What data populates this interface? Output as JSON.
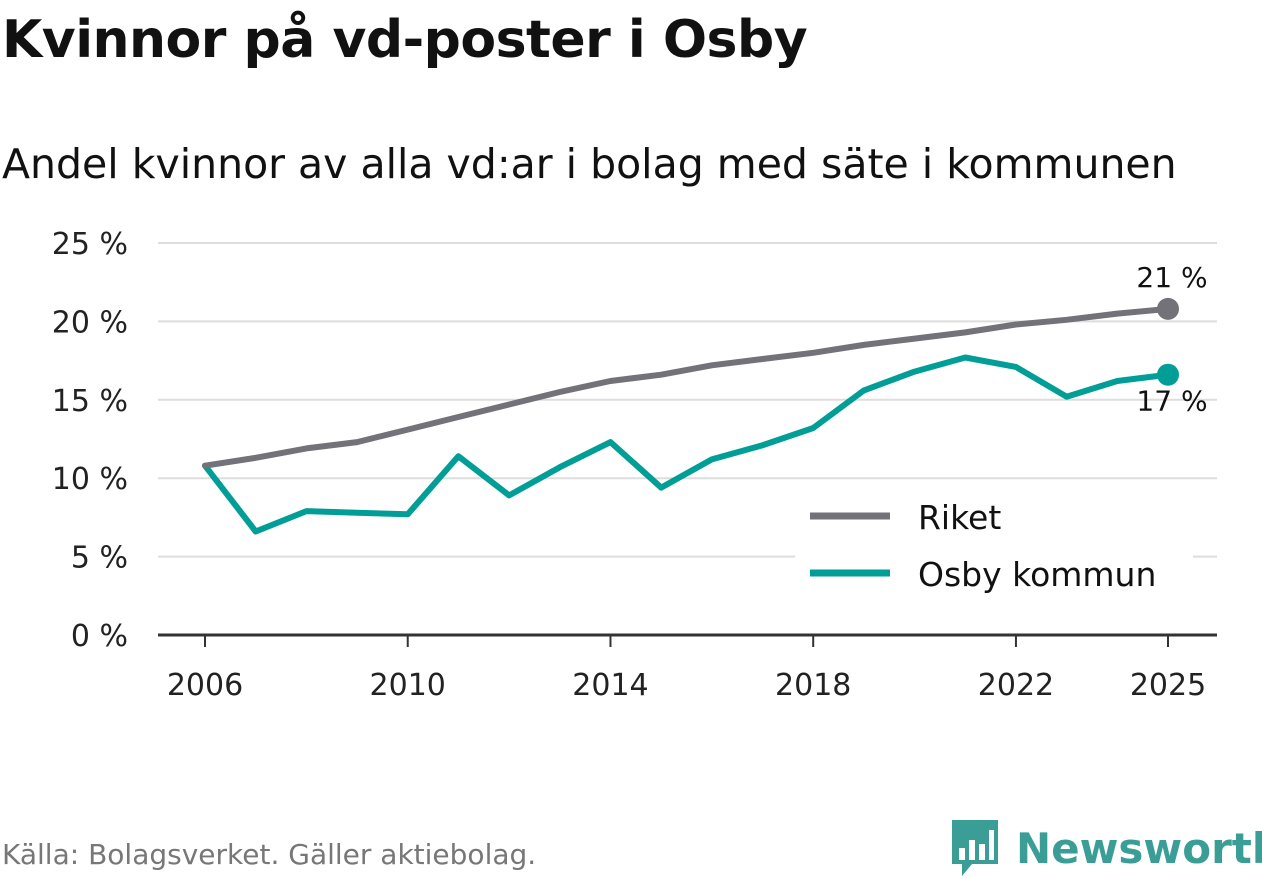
{
  "title": "Kvinnor på vd-poster i Osby",
  "subtitle": "Andel kvinnor av alla vd:ar i bolag med säte i kommunen",
  "source": "Källa: Bolagsverket. Gäller aktiebolag.",
  "brand": {
    "name": "Newsworthy",
    "icon": "bar-chart-speech-bubble-icon"
  },
  "colors": {
    "riket": "#737278",
    "osby": "#009e96",
    "grid": "#dddddd",
    "axis": "#333333"
  },
  "chart_data": {
    "type": "line",
    "title": "Kvinnor på vd-poster i Osby",
    "subtitle": "Andel kvinnor av alla vd:ar i bolag med säte i kommunen",
    "xlabel": "",
    "ylabel": "",
    "x": [
      2006,
      2007,
      2008,
      2009,
      2010,
      2011,
      2012,
      2013,
      2014,
      2015,
      2016,
      2017,
      2018,
      2019,
      2020,
      2021,
      2022,
      2023,
      2024,
      2025
    ],
    "xticks": [
      2006,
      2010,
      2014,
      2018,
      2022,
      2025
    ],
    "xtick_labels": [
      "2006",
      "2010",
      "2014",
      "2018",
      "2022",
      "2025"
    ],
    "ylim": [
      0,
      25
    ],
    "yticks": [
      0,
      5,
      10,
      15,
      20,
      25
    ],
    "ytick_labels": [
      "0 %",
      "5 %",
      "10 %",
      "15 %",
      "20 %",
      "25 %"
    ],
    "grid": true,
    "legend_position": "bottom-right",
    "series": [
      {
        "name": "Riket",
        "color": "#737278",
        "values": [
          10.8,
          11.3,
          11.9,
          12.3,
          13.1,
          13.9,
          14.7,
          15.5,
          16.2,
          16.6,
          17.2,
          17.6,
          18.0,
          18.5,
          18.9,
          19.3,
          19.8,
          20.1,
          20.5,
          20.8
        ],
        "end_label": "21 %"
      },
      {
        "name": "Osby kommun",
        "color": "#009e96",
        "values": [
          10.8,
          6.6,
          7.9,
          7.8,
          7.7,
          11.4,
          8.9,
          10.7,
          12.3,
          9.4,
          11.2,
          12.1,
          13.2,
          15.6,
          16.8,
          17.7,
          17.1,
          15.2,
          16.2,
          16.6
        ],
        "end_label": "17 %"
      }
    ]
  }
}
